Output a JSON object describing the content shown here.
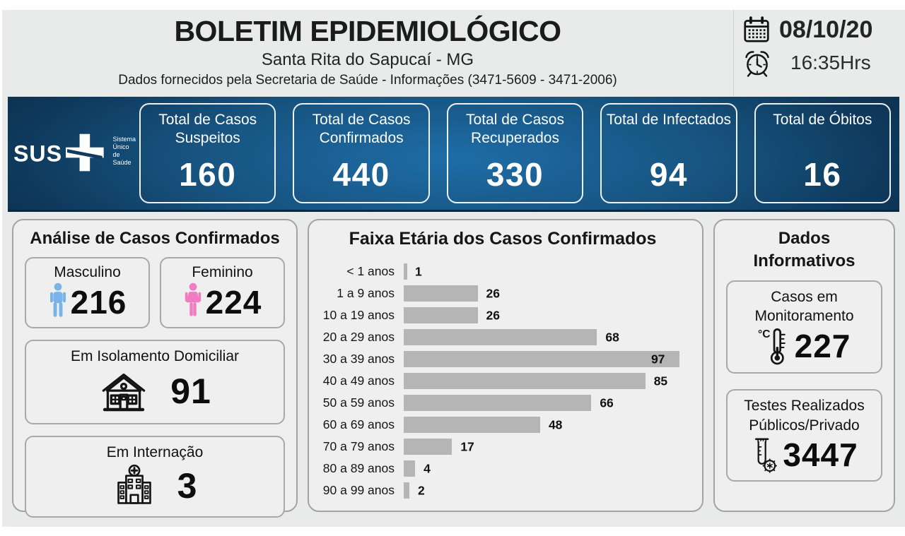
{
  "header": {
    "title": "BOLETIM EPIDEMIOLÓGICO",
    "subtitle": "Santa Rita do Sapucaí - MG",
    "info_line": "Dados fornecidos pela Secretaria de Saúde - Informações (3471-5609 - 3471-2006)",
    "date": "08/10/20",
    "time": "16:35Hrs"
  },
  "sus_logo": {
    "text": "SUS",
    "tagline": "Sistema\nÚnico\nde Saúde"
  },
  "stats": [
    {
      "label": "Total de Casos Suspeitos",
      "value": "160"
    },
    {
      "label": "Total de Casos Confirmados",
      "value": "440"
    },
    {
      "label": "Total de Casos Recuperados",
      "value": "330"
    },
    {
      "label": "Total de Infectados",
      "value": "94"
    },
    {
      "label": "Total de Óbitos",
      "value": "16"
    }
  ],
  "analysis": {
    "title": "Análise de Casos Confirmados",
    "male": {
      "label": "Masculino",
      "value": "216"
    },
    "female": {
      "label": "Feminino",
      "value": "224"
    },
    "isolation": {
      "label": "Em Isolamento Domiciliar",
      "value": "91"
    },
    "hospitalized": {
      "label": "Em Internação",
      "value": "3"
    }
  },
  "chart_data": {
    "type": "bar",
    "orientation": "horizontal",
    "title": "Faixa Etária dos Casos Confirmados",
    "categories": [
      "< 1 anos",
      "1 a 9 anos",
      "10 a 19 anos",
      "20 a 29 anos",
      "30 a 39 anos",
      "40 a 49 anos",
      "50 a 59 anos",
      "60 a 69 anos",
      "70 a 79 anos",
      "80 a 89 anos",
      "90 a 99 anos"
    ],
    "values": [
      1,
      26,
      26,
      68,
      97,
      85,
      66,
      48,
      17,
      4,
      2
    ],
    "xlim": [
      0,
      100
    ],
    "bar_color": "#b5b5b5",
    "value_labels": true,
    "grid": false,
    "legend": false
  },
  "informative": {
    "title": "Dados\nInformativos",
    "monitoring": {
      "label": "Casos em Monitoramento",
      "value": "227",
      "icon_label": "°C"
    },
    "tests": {
      "label": "Testes Realizados Públicos/Privado",
      "value": "3447"
    }
  },
  "colors": {
    "banner_center": "#1e6da8",
    "banner_edge": "#0c2c49",
    "male_icon": "#79b3e8",
    "female_icon": "#f07cc2",
    "bar": "#b5b5b5",
    "background": "#e9eaea",
    "panel": "#efefef"
  }
}
